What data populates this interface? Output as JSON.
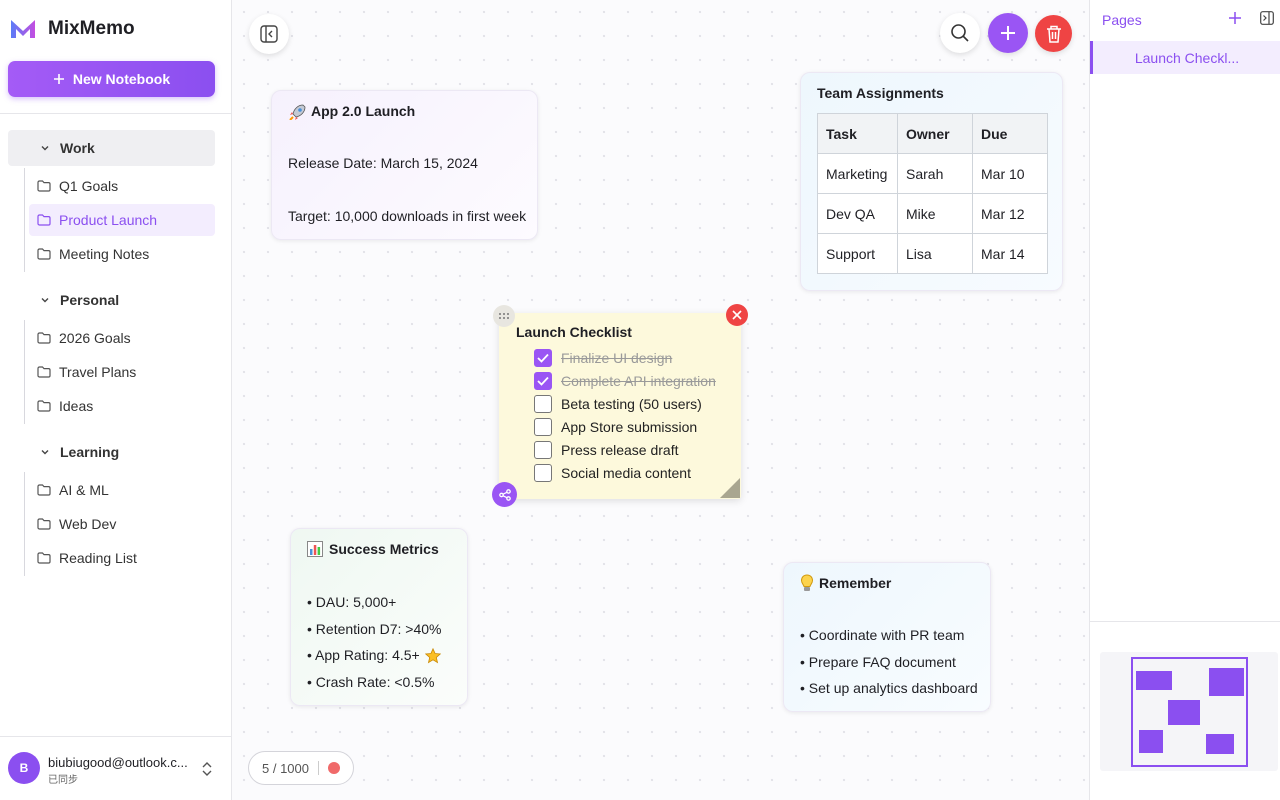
{
  "app": {
    "name": "MixMemo",
    "new_notebook": "New Notebook"
  },
  "notebooks": [
    {
      "name": "Work",
      "active": true,
      "items": [
        {
          "name": "Q1 Goals",
          "selected": false
        },
        {
          "name": "Product Launch",
          "selected": true
        },
        {
          "name": "Meeting Notes",
          "selected": false
        }
      ]
    },
    {
      "name": "Personal",
      "active": false,
      "items": [
        {
          "name": "2026 Goals",
          "selected": false
        },
        {
          "name": "Travel Plans",
          "selected": false
        },
        {
          "name": "Ideas",
          "selected": false
        }
      ]
    },
    {
      "name": "Learning",
      "active": false,
      "items": [
        {
          "name": "AI & ML",
          "selected": false
        },
        {
          "name": "Web Dev",
          "selected": false
        },
        {
          "name": "Reading List",
          "selected": false
        }
      ]
    }
  ],
  "account": {
    "avatar": "B",
    "email": "biubiugood@outlook.c...",
    "status": "已同步"
  },
  "notes": {
    "launch": {
      "title": "App 2.0 Launch",
      "lines": [
        "Release Date: March 15, 2024",
        "Target: 10,000 downloads in first week"
      ]
    },
    "team": {
      "title": "Team Assignments",
      "header": [
        "Task",
        "Owner",
        "Due"
      ],
      "rows": [
        [
          "Marketing",
          "Sarah",
          "Mar 10"
        ],
        [
          "Dev QA",
          "Mike",
          "Mar 12"
        ],
        [
          "Support",
          "Lisa",
          "Mar 14"
        ]
      ]
    },
    "checklist": {
      "title": "Launch Checklist",
      "items": [
        {
          "text": "Finalize UI design",
          "checked": true
        },
        {
          "text": "Complete API integration",
          "checked": true
        },
        {
          "text": "Beta testing (50 users)",
          "checked": false
        },
        {
          "text": "App Store submission",
          "checked": false
        },
        {
          "text": "Press release draft",
          "checked": false
        },
        {
          "text": "Social media content",
          "checked": false
        }
      ]
    },
    "metrics": {
      "title": "Success Metrics",
      "lines": [
        "• DAU: 5,000+",
        "• Retention D7: >40%",
        "• App Rating: 4.5+",
        "• Crash Rate: <0.5%"
      ]
    },
    "remember": {
      "title": "Remember",
      "lines": [
        "• Coordinate with PR team",
        "• Prepare FAQ document",
        "• Set up analytics dashboard"
      ]
    }
  },
  "counter": "5 / 1000",
  "pages": {
    "title": "Pages",
    "items": [
      {
        "name": "Launch Checkl...",
        "selected": true
      }
    ]
  }
}
